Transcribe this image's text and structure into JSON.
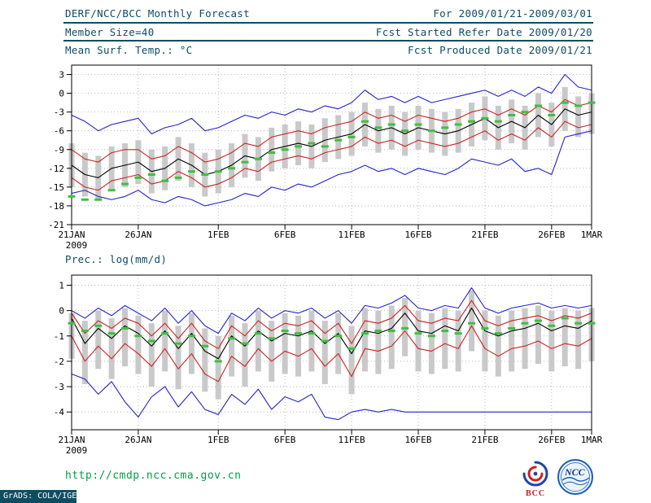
{
  "header": {
    "title": "DERF/NCC/BCC Monthly Forecast",
    "member_size": "Member Size=40",
    "for_range": "For 2009/01/21-2009/03/01",
    "fcst_started": "Fcst Started Refer Date 2009/01/20",
    "fcst_produced": "Fcst Produced Date 2009/01/21"
  },
  "panels": {
    "temp_label": "Mean Surf. Temp.: °C",
    "prec_label": "Prec.: log(mm/d)"
  },
  "footer": {
    "url": "http://cmdp.ncc.cma.gov.cn",
    "credit": "GrADS: COLA/IGES",
    "logo_bcc": "BCC",
    "logo_ncc": "NCC"
  },
  "colors": {
    "header_text": "#0d4d62",
    "envelope_line": "#2323cc",
    "quartile_line": "#cc2323",
    "mean_line": "#000000",
    "obs_marker": "#3fc03f",
    "spread_bar": "#c9c9c9",
    "url_text": "#00a044"
  },
  "chart_data": [
    {
      "type": "line",
      "title": "Mean Surf. Temp.: °C",
      "x_tick_labels": [
        "21JAN",
        "26JAN",
        "1FEB",
        "6FEB",
        "11FEB",
        "16FEB",
        "21FEB",
        "26FEB",
        "1MAR"
      ],
      "x_tick_index": [
        0,
        5,
        11,
        16,
        21,
        26,
        31,
        36,
        39
      ],
      "x_first_sublabel": "2009",
      "n_points": 40,
      "ylim": [
        -21,
        4.5
      ],
      "yticks": [
        3,
        0,
        -3,
        -6,
        -9,
        -12,
        -15,
        -18,
        -21
      ],
      "grid": true,
      "series": [
        {
          "name": "ensemble-max",
          "color": "#2323cc",
          "style": "line",
          "values": [
            -3.5,
            -4.5,
            -6,
            -5,
            -4.5,
            -4,
            -6.5,
            -5.5,
            -5,
            -4,
            -6,
            -5.5,
            -4.5,
            -3.5,
            -4,
            -3,
            -3.5,
            -2.5,
            -3,
            -2,
            -2.5,
            -1.5,
            0.5,
            -1,
            -0.5,
            -1.5,
            -0.5,
            -1.5,
            -1,
            -0.5,
            0,
            0.5,
            -0.5,
            0.5,
            -0.5,
            1,
            0,
            3,
            1,
            0.5
          ]
        },
        {
          "name": "upper-quartile",
          "color": "#cc2323",
          "style": "line",
          "values": [
            -9,
            -10.5,
            -11,
            -9.5,
            -9,
            -9,
            -10.5,
            -10,
            -8.5,
            -9.5,
            -11,
            -10.5,
            -9.5,
            -8,
            -8.5,
            -7,
            -6.5,
            -6,
            -6.5,
            -5.5,
            -5,
            -4.5,
            -3,
            -4,
            -3.5,
            -4.5,
            -3.5,
            -4,
            -4.5,
            -4,
            -3,
            -2.5,
            -3.5,
            -2.5,
            -3.5,
            -2,
            -3,
            -1,
            -2,
            -1.5
          ]
        },
        {
          "name": "ensemble-mean",
          "color": "#000000",
          "style": "line",
          "values": [
            -11.5,
            -13,
            -13.5,
            -12,
            -11.5,
            -11,
            -12.5,
            -12,
            -10.5,
            -11.5,
            -13,
            -12.5,
            -11.5,
            -10,
            -10.5,
            -9,
            -8.5,
            -8,
            -8.5,
            -7.5,
            -7,
            -6.5,
            -5,
            -6,
            -5.5,
            -6.5,
            -5.5,
            -6,
            -6.5,
            -6,
            -5,
            -4,
            -5.5,
            -4.5,
            -5.5,
            -3.5,
            -5,
            -2.5,
            -3.5,
            -3
          ]
        },
        {
          "name": "lower-quartile",
          "color": "#cc2323",
          "style": "line",
          "values": [
            -13.5,
            -15,
            -15.5,
            -14,
            -13.5,
            -13,
            -14.5,
            -14,
            -12.5,
            -13.5,
            -15,
            -14.5,
            -13.5,
            -12,
            -12.5,
            -11,
            -10.5,
            -10,
            -10.5,
            -9.5,
            -9,
            -8.5,
            -7,
            -8,
            -7.5,
            -8.5,
            -7.5,
            -8,
            -8.5,
            -8,
            -7,
            -6,
            -7.5,
            -6.5,
            -7.5,
            -5.5,
            -7,
            -4.5,
            -5.5,
            -5
          ]
        },
        {
          "name": "ensemble-min",
          "color": "#2323cc",
          "style": "line",
          "values": [
            -16,
            -15.5,
            -16.5,
            -17,
            -16.5,
            -15.5,
            -17,
            -17.5,
            -16.5,
            -17,
            -18,
            -17.5,
            -17,
            -16,
            -16.5,
            -15,
            -15.5,
            -14.5,
            -15,
            -14,
            -13,
            -12.5,
            -11.5,
            -12.5,
            -12,
            -13,
            -12,
            -12.5,
            -13,
            -12,
            -10.5,
            -11,
            -11.5,
            -10.5,
            -12.5,
            -12,
            -13,
            -7,
            -6.5,
            -6
          ]
        },
        {
          "name": "climatology-obs",
          "color": "#3fc03f",
          "style": "dash-markers",
          "values": [
            -16.5,
            -17,
            -17,
            -15.5,
            -14.5,
            -13.5,
            -13,
            -14,
            -13.5,
            -12.5,
            -13,
            -12.5,
            -12,
            -11,
            -10.5,
            -9.5,
            -9,
            -8.5,
            -8,
            -8.5,
            -7.5,
            -7,
            -4.5,
            -5.5,
            -5,
            -6,
            -5,
            -6,
            -5.5,
            -5,
            -4.5,
            -4,
            -4.5,
            -3.5,
            -3,
            -2,
            -3.5,
            -1.5,
            -2,
            -1.5
          ]
        }
      ],
      "spread_bars": {
        "color": "#c9c9c9",
        "top": [
          -8,
          -9.5,
          -10,
          -8.5,
          -8,
          -7.5,
          -9,
          -8.5,
          -7,
          -8,
          -9.5,
          -9,
          -8,
          -6.5,
          -7,
          -5.5,
          -5,
          -4.5,
          -5,
          -4,
          -3.5,
          -3,
          -1.5,
          -2.5,
          -2,
          -3,
          -2,
          -2.5,
          -3,
          -2.5,
          -1.5,
          -0.5,
          -2,
          -1,
          -2,
          0,
          -1.5,
          1,
          -0.5,
          0
        ],
        "bottom": [
          -15,
          -16.5,
          -17,
          -15.5,
          -15,
          -14.5,
          -16,
          -15.5,
          -14,
          -15,
          -16.5,
          -16,
          -15,
          -13.5,
          -14,
          -12.5,
          -12,
          -11.5,
          -12,
          -11,
          -10.5,
          -10,
          -8.5,
          -9.5,
          -9,
          -10,
          -9,
          -9.5,
          -10,
          -9.5,
          -8.5,
          -7.5,
          -9,
          -8,
          -9,
          -7,
          -8.5,
          -6,
          -7,
          -6.5
        ]
      }
    },
    {
      "type": "line",
      "title": "Prec.: log(mm/d)",
      "x_tick_labels": [
        "21JAN",
        "26JAN",
        "1FEB",
        "6FEB",
        "11FEB",
        "16FEB",
        "21FEB",
        "26FEB",
        "1MAR"
      ],
      "x_tick_index": [
        0,
        5,
        11,
        16,
        21,
        26,
        31,
        36,
        39
      ],
      "x_first_sublabel": "2009",
      "n_points": 40,
      "ylim": [
        -4.7,
        1.4
      ],
      "yticks": [
        1,
        0,
        -1,
        -2,
        -3,
        -4
      ],
      "grid": true,
      "series": [
        {
          "name": "ensemble-max",
          "color": "#2323cc",
          "style": "line",
          "values": [
            0,
            -0.3,
            0.1,
            -0.2,
            0.2,
            -0.1,
            -0.4,
            0.1,
            -0.5,
            0,
            -0.6,
            -0.9,
            -0.1,
            -0.4,
            0.1,
            -0.3,
            0,
            -0.1,
            0.1,
            -0.3,
            0,
            -0.5,
            0.2,
            0.1,
            0.3,
            0.6,
            0.1,
            0,
            0.2,
            0.1,
            0.9,
            0.1,
            -0.1,
            0.1,
            0.2,
            0.3,
            0.1,
            0.2,
            0.1,
            0.2
          ]
        },
        {
          "name": "upper-quartile",
          "color": "#cc2323",
          "style": "line",
          "values": [
            -0.1,
            -0.9,
            -0.4,
            -0.7,
            -0.3,
            -0.5,
            -1,
            -0.5,
            -1.1,
            -0.5,
            -1.2,
            -1.5,
            -0.6,
            -1,
            -0.4,
            -0.8,
            -0.5,
            -0.6,
            -0.4,
            -0.9,
            -0.5,
            -1.3,
            -0.4,
            -0.5,
            -0.3,
            0.2,
            -0.4,
            -0.5,
            -0.3,
            -0.4,
            0.4,
            -0.4,
            -0.6,
            -0.4,
            -0.3,
            -0.2,
            -0.4,
            -0.2,
            -0.3,
            -0.1
          ]
        },
        {
          "name": "ensemble-mean",
          "color": "#000000",
          "style": "line",
          "values": [
            -0.3,
            -1.3,
            -0.7,
            -1.1,
            -0.6,
            -0.9,
            -1.4,
            -0.8,
            -1.5,
            -0.9,
            -1.6,
            -1.9,
            -1,
            -1.4,
            -0.8,
            -1.2,
            -0.9,
            -1,
            -0.8,
            -1.3,
            -0.9,
            -1.7,
            -0.8,
            -0.9,
            -0.7,
            -0.1,
            -0.8,
            -0.9,
            -0.6,
            -0.8,
            0.1,
            -0.8,
            -1,
            -0.8,
            -0.7,
            -0.5,
            -0.8,
            -0.6,
            -0.7,
            -0.4
          ]
        },
        {
          "name": "lower-quartile",
          "color": "#cc2323",
          "style": "line",
          "values": [
            -1,
            -2,
            -1.4,
            -1.9,
            -1.3,
            -1.7,
            -2.2,
            -1.5,
            -2.3,
            -1.7,
            -2.5,
            -2.8,
            -1.8,
            -2.2,
            -1.5,
            -2,
            -1.6,
            -1.8,
            -1.5,
            -2.2,
            -1.7,
            -2.6,
            -1.5,
            -1.6,
            -1.4,
            -0.8,
            -1.5,
            -1.6,
            -1.3,
            -1.5,
            -0.6,
            -1.5,
            -1.8,
            -1.5,
            -1.4,
            -1.2,
            -1.5,
            -1.3,
            -1.4,
            -1.1
          ]
        },
        {
          "name": "ensemble-min",
          "color": "#2323cc",
          "style": "line",
          "values": [
            -2.5,
            -2.7,
            -3.3,
            -2.8,
            -3.6,
            -4.2,
            -3.4,
            -3,
            -3.8,
            -3.2,
            -3.9,
            -4.1,
            -3.3,
            -3.7,
            -3.1,
            -3.9,
            -3.4,
            -3.6,
            -3.3,
            -4.2,
            -4.3,
            -4,
            -3.9,
            -4,
            -3.9,
            -4,
            -4,
            -4,
            -4,
            -4,
            -4,
            -4,
            -4,
            -4,
            -4,
            -4,
            -4,
            -4,
            -4,
            -4
          ]
        },
        {
          "name": "climatology-obs",
          "color": "#3fc03f",
          "style": "dash-markers",
          "values": [
            -0.5,
            -0.8,
            -0.6,
            -0.9,
            -0.7,
            -1,
            -1.2,
            -0.9,
            -1.3,
            -1,
            -1.4,
            -2,
            -1.1,
            -1.3,
            -0.9,
            -1.1,
            -0.8,
            -0.9,
            -0.9,
            -1.2,
            -1,
            -1.5,
            -0.9,
            -0.8,
            -0.8,
            -0.7,
            -0.9,
            -1,
            -0.8,
            -0.9,
            -0.5,
            -0.7,
            -0.9,
            -0.7,
            -0.5,
            -0.4,
            -0.6,
            -0.3,
            -0.5,
            -0.5
          ]
        }
      ],
      "spread_bars": {
        "color": "#c9c9c9",
        "top": [
          -0.1,
          -0.4,
          0,
          -0.3,
          0.1,
          -0.2,
          -0.5,
          0,
          -0.6,
          -0.1,
          -0.7,
          -1,
          -0.2,
          -0.5,
          0,
          -0.4,
          -0.1,
          -0.2,
          0,
          -0.4,
          -0.1,
          -0.6,
          0.1,
          0,
          0.2,
          0.5,
          0,
          -0.1,
          0.1,
          0,
          0.8,
          0,
          -0.2,
          0,
          0.1,
          0.2,
          0,
          0.1,
          0,
          0.1
        ],
        "bottom": [
          -1.9,
          -2.9,
          -2.3,
          -2.7,
          -2.2,
          -2.5,
          -3,
          -2.4,
          -3.1,
          -2.5,
          -3.2,
          -3.5,
          -2.6,
          -3,
          -2.4,
          -2.8,
          -2.5,
          -2.6,
          -2.4,
          -2.9,
          -2.5,
          -3.3,
          -2.4,
          -2.5,
          -2.3,
          -1.8,
          -2.4,
          -2.5,
          -2.3,
          -2.4,
          -1.6,
          -2.4,
          -2.6,
          -2.4,
          -2.3,
          -2.1,
          -2.4,
          -2.2,
          -2.3,
          -2
        ]
      }
    }
  ]
}
